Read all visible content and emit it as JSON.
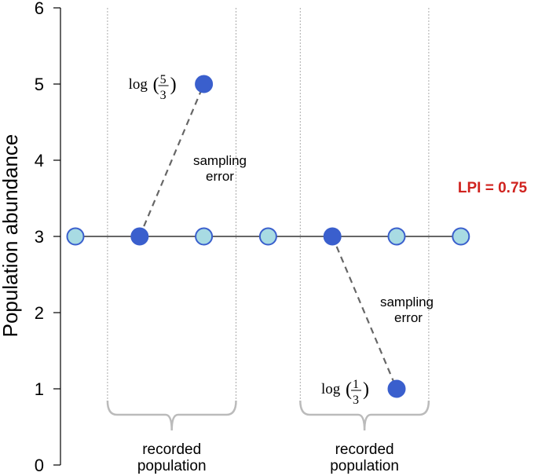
{
  "chart_data": {
    "type": "scatter",
    "title": "",
    "xlabel": "",
    "ylabel": "Population abundance",
    "ylim": [
      0,
      6
    ],
    "yticks": [
      "0",
      "1",
      "2",
      "3",
      "4",
      "5",
      "6"
    ],
    "grid": false,
    "baseline": 3,
    "points": [
      {
        "x": 1,
        "y": 3,
        "kind": "true"
      },
      {
        "x": 2,
        "y": 3,
        "kind": "sampled"
      },
      {
        "x": 3,
        "y": 3,
        "kind": "true"
      },
      {
        "x": 4,
        "y": 3,
        "kind": "true"
      },
      {
        "x": 5,
        "y": 3,
        "kind": "sampled"
      },
      {
        "x": 6,
        "y": 3,
        "kind": "true"
      },
      {
        "x": 7,
        "y": 3,
        "kind": "true"
      },
      {
        "x": 3,
        "y": 5,
        "kind": "observed"
      },
      {
        "x": 6,
        "y": 1,
        "kind": "observed"
      }
    ],
    "error_links": [
      {
        "from": [
          2,
          3
        ],
        "to": [
          3,
          5
        ],
        "label": "sampling error",
        "value_label": {
          "fn": "log",
          "num": "5",
          "den": "3"
        }
      },
      {
        "from": [
          5,
          3
        ],
        "to": [
          6,
          1
        ],
        "label": "sampling error",
        "value_label": {
          "fn": "log",
          "num": "1",
          "den": "3"
        }
      }
    ],
    "windows": [
      {
        "from": 1.5,
        "to": 3.5,
        "label_line1": "recorded",
        "label_line2": "population"
      },
      {
        "from": 4.5,
        "to": 6.5,
        "label_line1": "recorded",
        "label_line2": "population"
      }
    ],
    "annotation": "LPI = 0.75",
    "colors": {
      "true_fill": "#a8dbe3",
      "point_stroke": "#3a5fcd",
      "sampled_fill": "#3a5fcd",
      "annotation": "#d0231f",
      "line": "#666666",
      "brace": "#bbbbbb"
    }
  }
}
